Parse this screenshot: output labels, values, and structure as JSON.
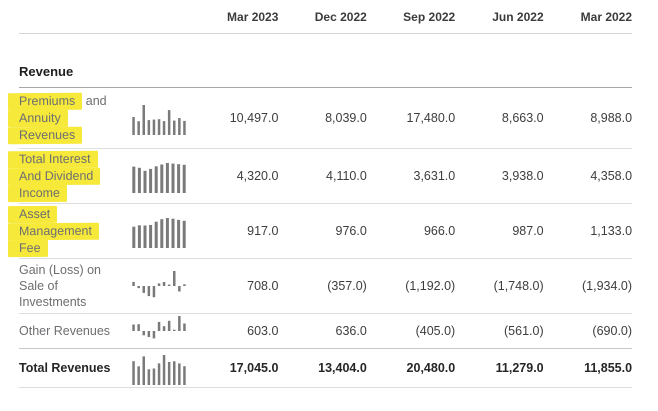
{
  "columns": [
    "Mar 2023",
    "Dec 2022",
    "Sep 2022",
    "Jun 2022",
    "Mar 2022"
  ],
  "section": {
    "title": "Revenue"
  },
  "annotations": {
    "highlight_color": "#f6e93a",
    "highlighted_rows": [
      "Premiums and Annuity Revenues",
      "Total Interest And Dividend Income",
      "Asset Management Fee"
    ]
  },
  "sparkline_color": "#7a7a7a",
  "rows": [
    {
      "name": "premiums-and-annuity-revenues",
      "label": "Premiums and Annuity Revenues",
      "label_lines": [
        {
          "text": "Premiums",
          "tail": " and",
          "highlight": true
        },
        {
          "text": "Annuity",
          "tail": "",
          "highlight": true
        },
        {
          "text": "Revenues",
          "tail": "",
          "highlight": true
        }
      ],
      "bold": false,
      "values": [
        "10,497.0",
        "8,039.0",
        "17,480.0",
        "8,663.0",
        "8,988.0"
      ],
      "sparkline": {
        "signed": false,
        "values": [
          10497,
          8039,
          17480,
          8663,
          8988,
          9200,
          8100,
          14500,
          8400,
          9900,
          8200
        ]
      }
    },
    {
      "name": "total-interest-and-dividend-income",
      "label": "Total Interest And Dividend Income",
      "label_lines": [
        {
          "text": "Total Interest",
          "tail": "",
          "highlight": true
        },
        {
          "text": "And Dividend",
          "tail": "",
          "highlight": true
        },
        {
          "text": "Income",
          "tail": "",
          "highlight": true
        }
      ],
      "bold": false,
      "values": [
        "4,320.0",
        "4,110.0",
        "3,631.0",
        "3,938.0",
        "4,358.0"
      ],
      "sparkline": {
        "signed": false,
        "values": [
          4320,
          4110,
          3631,
          3938,
          4358,
          4650,
          4900,
          4800,
          4700,
          4600
        ]
      }
    },
    {
      "name": "asset-management-fee",
      "label": "Asset Management Fee",
      "label_lines": [
        {
          "text": "Asset",
          "tail": "",
          "highlight": true
        },
        {
          "text": "Management",
          "tail": "",
          "highlight": true
        },
        {
          "text": "Fee",
          "tail": "",
          "highlight": true
        }
      ],
      "bold": false,
      "values": [
        "917.0",
        "976.0",
        "966.0",
        "987.0",
        "1,133.0"
      ],
      "sparkline": {
        "signed": false,
        "values": [
          917,
          976,
          966,
          987,
          1133,
          1240,
          1290,
          1260,
          1210,
          1170
        ]
      }
    },
    {
      "name": "gain-loss-on-sale-of-investments",
      "label": "Gain (Loss) on Sale of Investments",
      "label_lines": [
        {
          "text": "Gain (Loss) on",
          "tail": "",
          "highlight": false
        },
        {
          "text": "Sale of",
          "tail": "",
          "highlight": false
        },
        {
          "text": "Investments",
          "tail": "",
          "highlight": false
        }
      ],
      "bold": false,
      "values": [
        "708.0",
        "(357.0)",
        "(1,192.0)",
        "(1,748.0)",
        "(1,934.0)"
      ],
      "sparkline": {
        "signed": true,
        "values": [
          708,
          -357,
          -1192,
          -1748,
          -1934,
          450,
          700,
          250,
          2600,
          -950,
          300
        ]
      }
    },
    {
      "name": "other-revenues",
      "label": "Other Revenues",
      "label_lines": [
        {
          "text": "Other Revenues",
          "tail": "",
          "highlight": false
        }
      ],
      "bold": false,
      "values": [
        "603.0",
        "636.0",
        "(405.0)",
        "(561.0)",
        "(690.0)"
      ],
      "sparkline": {
        "signed": true,
        "values": [
          603,
          636,
          -405,
          -561,
          -690,
          850,
          450,
          950,
          60,
          1400,
          700
        ]
      }
    },
    {
      "name": "total-revenues",
      "label": "Total Revenues",
      "label_lines": [
        {
          "text": "Total Revenues",
          "tail": "",
          "highlight": false
        }
      ],
      "bold": true,
      "values": [
        "17,045.0",
        "13,404.0",
        "20,480.0",
        "11,279.0",
        "11,855.0"
      ],
      "sparkline": {
        "signed": false,
        "values": [
          17045,
          13404,
          20480,
          11279,
          11855,
          15500,
          21500,
          16500,
          17000,
          15500,
          13500
        ]
      }
    }
  ]
}
